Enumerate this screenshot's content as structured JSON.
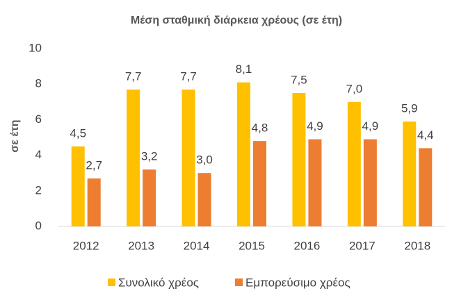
{
  "chart_data": {
    "type": "bar",
    "title": "Μέση σταθμική διάρκεια χρέους (σε έτη)",
    "ylabel": "σε έτη",
    "categories": [
      "2012",
      "2013",
      "2014",
      "2015",
      "2016",
      "2017",
      "2018"
    ],
    "series": [
      {
        "name": "Συνολικό χρέος",
        "color": "#ffc000",
        "values": [
          4.5,
          7.7,
          7.7,
          8.1,
          7.5,
          7.0,
          5.9
        ],
        "value_labels": [
          "4,5",
          "7,7",
          "7,7",
          "8,1",
          "7,5",
          "7,0",
          "5,9"
        ]
      },
      {
        "name": "Εμπορεύσιμο χρέος",
        "color": "#ed7d31",
        "values": [
          2.7,
          3.2,
          3.0,
          4.8,
          4.9,
          4.9,
          4.4
        ],
        "value_labels": [
          "2,7",
          "3,2",
          "3,0",
          "4,8",
          "4,9",
          "4,9",
          "4,4"
        ]
      }
    ],
    "ylim": [
      0,
      10
    ],
    "yticks": [
      0,
      2,
      4,
      6,
      8,
      10
    ],
    "grid": false,
    "legend": "bottom"
  }
}
